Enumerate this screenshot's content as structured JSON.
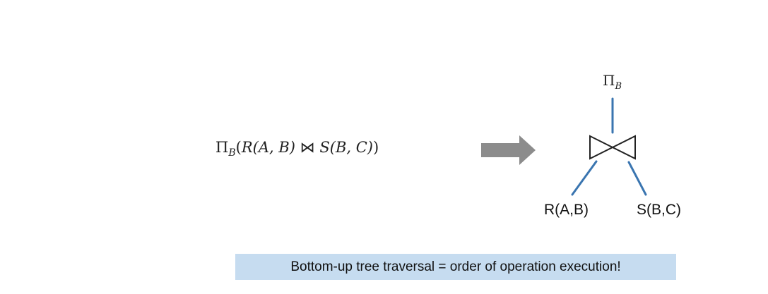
{
  "expression": {
    "projection_symbol": "Π",
    "projection_attr": "B",
    "left_relation": "R(A, B)",
    "join_symbol": "⋈",
    "right_relation": "S(B, C)",
    "open_paren": "(",
    "close_paren": ")"
  },
  "tree": {
    "root_symbol": "Π",
    "root_attr": "B",
    "left_leaf": "R(A,B)",
    "right_leaf": "S(B,C)",
    "edge_color": "#3a75b0",
    "join_node_color": "#222222"
  },
  "arrow": {
    "color": "#8c8c8c"
  },
  "caption": {
    "text": "Bottom-up tree traversal = order of operation execution!",
    "background": "#c6dcf0"
  }
}
